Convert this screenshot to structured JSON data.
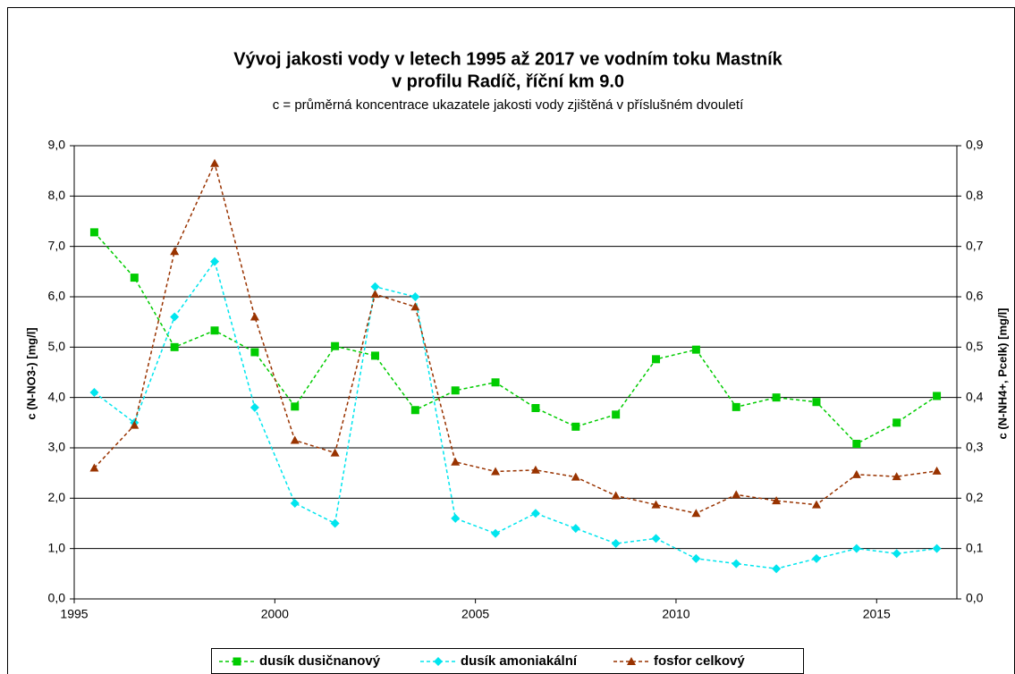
{
  "chart_data": {
    "type": "line",
    "title": "Vývoj jakosti vody v letech 1995 až 2017 ve vodním toku Mastník",
    "title_line2": "v profilu Radíč, říční km 9.0",
    "subtitle": "c = průměrná koncentrace ukazatele jakosti vody zjištěná v příslušném dvouletí",
    "ylabel": "c (N-NO3-) [mg/l]",
    "y2label": "c (N-NH4+, Pcelk) [mg/l]",
    "x": [
      1995.5,
      1996.5,
      1997.5,
      1998.5,
      1999.5,
      2000.5,
      2001.5,
      2002.5,
      2003.5,
      2004.5,
      2005.5,
      2006.5,
      2007.5,
      2008.5,
      2009.5,
      2010.5,
      2011.5,
      2012.5,
      2013.5,
      2014.5,
      2015.5,
      2016.5
    ],
    "xlim": [
      1995,
      2017
    ],
    "xticks": [
      1995,
      2000,
      2005,
      2010,
      2015
    ],
    "ylim": [
      0,
      9
    ],
    "yticks": [
      {
        "value": 0,
        "label": "0,0"
      },
      {
        "value": 1,
        "label": "1,0"
      },
      {
        "value": 2,
        "label": "2,0"
      },
      {
        "value": 3,
        "label": "3,0"
      },
      {
        "value": 4,
        "label": "4,0"
      },
      {
        "value": 5,
        "label": "5,0"
      },
      {
        "value": 6,
        "label": "6,0"
      },
      {
        "value": 7,
        "label": "7,0"
      },
      {
        "value": 8,
        "label": "8,0"
      },
      {
        "value": 9,
        "label": "9,0"
      }
    ],
    "y2lim": [
      0,
      0.9
    ],
    "y2ticks": [
      {
        "value": 0,
        "label": "0,0"
      },
      {
        "value": 0.1,
        "label": "0,1"
      },
      {
        "value": 0.2,
        "label": "0,2"
      },
      {
        "value": 0.3,
        "label": "0,3"
      },
      {
        "value": 0.4,
        "label": "0,4"
      },
      {
        "value": 0.5,
        "label": "0,5"
      },
      {
        "value": 0.6,
        "label": "0,6"
      },
      {
        "value": 0.7,
        "label": "0,7"
      },
      {
        "value": 0.8,
        "label": "0,8"
      },
      {
        "value": 0.9,
        "label": "0,9"
      }
    ],
    "grid": true,
    "legend": "bottom",
    "series": [
      {
        "name": "dusík dusičnanový",
        "color": "#00cc00",
        "marker": "square",
        "values": [
          7.28,
          6.38,
          5.0,
          5.33,
          4.9,
          3.82,
          5.02,
          4.83,
          3.75,
          4.14,
          4.3,
          3.79,
          3.42,
          3.66,
          4.76,
          4.95,
          3.81,
          4.0,
          3.91,
          3.08,
          3.5,
          4.03
        ]
      },
      {
        "name": "dusík amoniakální",
        "color": "#00e5ee",
        "marker": "diamond",
        "axis": "y2",
        "values": [
          0.41,
          0.35,
          0.56,
          0.67,
          0.38,
          0.19,
          0.15,
          0.62,
          0.6,
          0.16,
          0.13,
          0.17,
          0.14,
          0.11,
          0.12,
          0.08,
          0.07,
          0.06,
          0.08,
          0.1,
          0.09,
          0.1
        ]
      },
      {
        "name": "fosfor celkový",
        "color": "#993300",
        "marker": "triangle",
        "axis": "y2",
        "values": [
          0.26,
          0.345,
          0.69,
          0.865,
          0.56,
          0.315,
          0.29,
          0.605,
          0.58,
          0.272,
          0.253,
          0.256,
          0.242,
          0.205,
          0.187,
          0.17,
          0.207,
          0.195,
          0.187,
          0.247,
          0.243,
          0.254
        ]
      }
    ]
  }
}
